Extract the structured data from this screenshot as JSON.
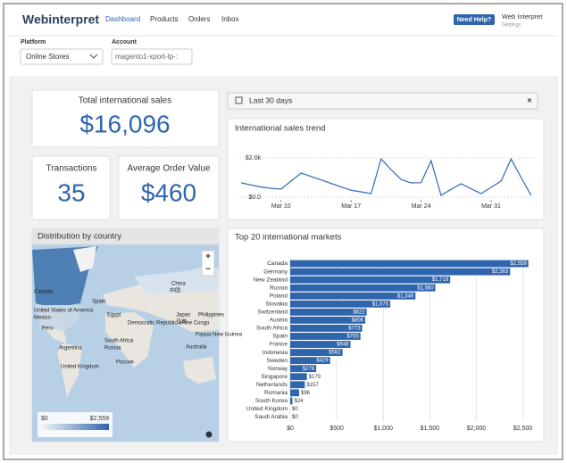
{
  "header": {
    "logo": "Webinterpret",
    "nav": [
      "Dashboard",
      "Products",
      "Orders",
      "Inbox"
    ],
    "help": "Need Help?",
    "user": {
      "name": "Web Interpret",
      "sub": "Settings"
    }
  },
  "filters": {
    "platform": {
      "label": "Platform",
      "value": "Online Stores"
    },
    "account": {
      "label": "Account",
      "value": "magento1-xport-lp-:"
    }
  },
  "kpis": {
    "total": {
      "label": "Total international sales",
      "value": "$16,096"
    },
    "transactions": {
      "label": "Transactions",
      "value": "35"
    },
    "aov": {
      "label": "Average Order Value",
      "value": "$460"
    }
  },
  "date_range": "Last 30 days",
  "trend": {
    "type": "line",
    "title": "International sales trend",
    "color": "#3a72b8",
    "categories": [
      null,
      null,
      null,
      null,
      "Mar 10",
      null,
      null,
      null,
      null,
      null,
      null,
      "Mar 17",
      null,
      null,
      null,
      null,
      null,
      null,
      "Mar 24",
      null,
      null,
      null,
      null,
      null,
      null,
      "Mar 31",
      null,
      null,
      null,
      null
    ],
    "values": [
      730,
      620,
      520,
      450,
      410,
      820,
      1230,
      1050,
      880,
      700,
      520,
      350,
      270,
      180,
      1950,
      1400,
      900,
      730,
      740,
      1860,
      90,
      400,
      680,
      430,
      180,
      500,
      820,
      1950,
      1000,
      90
    ],
    "ylim": [
      -300,
      2500
    ],
    "yticks": [
      {
        "value": 0,
        "label": "$0.0"
      },
      {
        "value": 2000,
        "label": "$2.0k"
      }
    ]
  },
  "map": {
    "title": "Distribution by country",
    "labels": [
      "Canada",
      "United States of America",
      "Mexico",
      "Peru",
      "Argentina",
      "United Kingdom",
      "Spain",
      "Egypt",
      "Democratic Republic of the Congo",
      "South Africa",
      "Russia",
      "Россия",
      "China",
      "中国",
      "Japan",
      "日本",
      "Philippines",
      "Papua New Guinea",
      "Australia"
    ],
    "legend": {
      "min": "$0",
      "max": "$2,559"
    }
  },
  "markets": {
    "type": "bar",
    "title": "Top 20 international markets",
    "color": "#2f65ad",
    "categories": [
      "Canada",
      "Germany",
      "New Zealand",
      "Russia",
      "Poland",
      "Slovakia",
      "Switzerland",
      "Austria",
      "South Africa",
      "Spain",
      "France",
      "Indonesia",
      "Sweden",
      "Norway",
      "Singapore",
      "Netherlands",
      "Romania",
      "South Korea",
      "United Kingdom",
      "Saudi Arabia"
    ],
    "values": [
      2559,
      2363,
      1719,
      1560,
      1346,
      1075,
      822,
      806,
      773,
      755,
      648,
      562,
      429,
      279,
      179,
      157,
      96,
      24,
      0,
      0
    ],
    "value_labels": [
      "$2,559",
      "$2,363",
      "$1,719",
      "$1,560",
      "$1,346",
      "$1,075",
      "$822",
      "$806",
      "$773",
      "$755",
      "$648",
      "$562",
      "$429",
      "$279",
      "$179",
      "$157",
      "$96",
      "$24",
      "$0",
      "$0"
    ],
    "xlim": [
      0,
      2600
    ],
    "xticks": [
      {
        "value": 0,
        "label": "$0"
      },
      {
        "value": 500,
        "label": "$500"
      },
      {
        "value": 1000,
        "label": "$1,000"
      },
      {
        "value": 1500,
        "label": "$1,500"
      },
      {
        "value": 2000,
        "label": "$2,000"
      },
      {
        "value": 2500,
        "label": "$2,500"
      }
    ]
  }
}
